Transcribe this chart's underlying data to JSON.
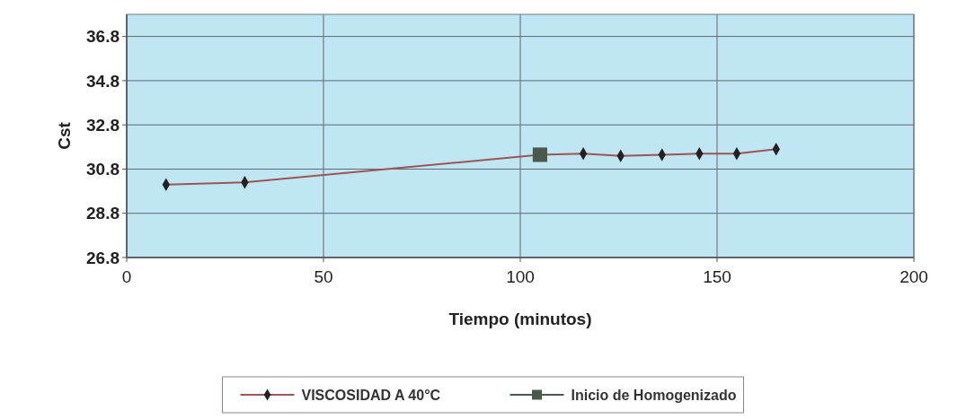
{
  "chart_data": {
    "type": "line",
    "xlabel": "Tiempo (minutos)",
    "ylabel": "Cst",
    "xlim": [
      0,
      200
    ],
    "xticks": [
      0,
      50,
      100,
      150,
      200
    ],
    "ylim": [
      26.8,
      37.8
    ],
    "yticks": [
      26.8,
      28.8,
      30.8,
      32.8,
      34.8,
      36.8
    ],
    "grid": true,
    "legend": "bottom",
    "series": [
      {
        "name": "VISCOSIDAD A 40°C",
        "color": "#9a5555",
        "marker": "diamond",
        "x": [
          10,
          30,
          105,
          116,
          125.5,
          136,
          145.5,
          155,
          165
        ],
        "values": [
          30.1,
          30.2,
          31.45,
          31.5,
          31.4,
          31.45,
          31.5,
          31.5,
          31.7
        ]
      },
      {
        "name": "Inicio de Homogenizado",
        "color": "#4a5a4a",
        "marker": "square",
        "x": [
          105
        ],
        "values": [
          31.45
        ]
      }
    ]
  }
}
